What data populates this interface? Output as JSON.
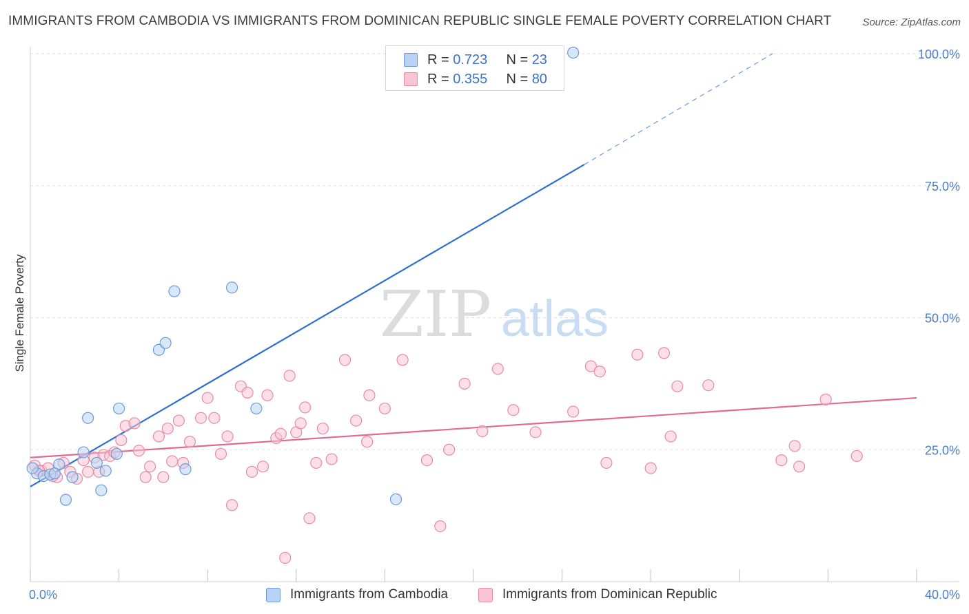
{
  "header": {
    "title": "IMMIGRANTS FROM CAMBODIA VS IMMIGRANTS FROM DOMINICAN REPUBLIC SINGLE FEMALE POVERTY CORRELATION CHART",
    "source": "Source: ZipAtlas.com"
  },
  "watermark": {
    "zip": "ZIP",
    "atlas": "atlas"
  },
  "legend": {
    "rows": [
      {
        "r_label": "R =",
        "r_value": "0.723",
        "n_label": "N =",
        "n_value": "23"
      },
      {
        "r_label": "R =",
        "r_value": "0.355",
        "n_label": "N =",
        "n_value": "80"
      }
    ]
  },
  "colors": {
    "cambodia_fill": "#b8d3f5",
    "cambodia_stroke": "#6a9ad8",
    "cambodia_line": "#2b6fce",
    "dominican_fill": "#f9c4d4",
    "dominican_stroke": "#e68aa6",
    "dominican_line": "#e06a92",
    "tick_text": "#4a7cc8"
  },
  "chart_data": {
    "type": "scatter",
    "title": "IMMIGRANTS FROM CAMBODIA VS IMMIGRANTS FROM DOMINICAN REPUBLIC SINGLE FEMALE POVERTY CORRELATION CHART",
    "xlabel": "",
    "ylabel": "Single Female Poverty",
    "xlim": [
      0,
      40
    ],
    "ylim": [
      0,
      102
    ],
    "x_tick_labels": [
      "0.0%",
      "40.0%"
    ],
    "y_ticks": [
      25,
      50,
      75,
      100
    ],
    "y_tick_labels": [
      "25.0%",
      "50.0%",
      "75.0%",
      "100.0%"
    ],
    "grid": "horizontal dashed",
    "legend_position": "top-center",
    "series": [
      {
        "name": "Immigrants from Cambodia",
        "color": "#b8d3f5",
        "points": [
          [
            0.3,
            20.5
          ],
          [
            0.6,
            20.0
          ],
          [
            0.9,
            20.3
          ],
          [
            1.3,
            22.2
          ],
          [
            1.6,
            15.5
          ],
          [
            1.9,
            19.8
          ],
          [
            2.4,
            24.5
          ],
          [
            2.6,
            31.0
          ],
          [
            3.0,
            22.5
          ],
          [
            3.2,
            17.3
          ],
          [
            3.4,
            21.0
          ],
          [
            3.9,
            24.2
          ],
          [
            4.0,
            32.8
          ],
          [
            5.8,
            43.9
          ],
          [
            6.1,
            45.2
          ],
          [
            6.5,
            55.0
          ],
          [
            7.0,
            21.3
          ],
          [
            9.1,
            55.7
          ],
          [
            10.2,
            32.8
          ],
          [
            16.5,
            15.6
          ],
          [
            24.5,
            100.2
          ],
          [
            0.1,
            21.5
          ],
          [
            1.1,
            20.5
          ]
        ]
      },
      {
        "name": "Immigrants from Dominican Republic",
        "color": "#f9c4d4",
        "points": [
          [
            0.2,
            22.0
          ],
          [
            0.5,
            21.0
          ],
          [
            0.8,
            21.5
          ],
          [
            1.2,
            19.8
          ],
          [
            1.5,
            22.5
          ],
          [
            1.8,
            20.8
          ],
          [
            2.1,
            19.5
          ],
          [
            2.4,
            23.0
          ],
          [
            2.6,
            20.8
          ],
          [
            2.9,
            23.5
          ],
          [
            3.1,
            20.8
          ],
          [
            3.3,
            24.0
          ],
          [
            3.6,
            23.8
          ],
          [
            4.1,
            26.8
          ],
          [
            4.3,
            29.5
          ],
          [
            4.7,
            30.0
          ],
          [
            4.9,
            24.8
          ],
          [
            5.2,
            19.8
          ],
          [
            5.4,
            21.8
          ],
          [
            5.8,
            27.5
          ],
          [
            6.0,
            19.8
          ],
          [
            6.2,
            29.0
          ],
          [
            6.4,
            22.8
          ],
          [
            6.7,
            30.5
          ],
          [
            6.9,
            22.5
          ],
          [
            7.2,
            26.5
          ],
          [
            7.7,
            31.0
          ],
          [
            8.0,
            34.8
          ],
          [
            8.3,
            31.0
          ],
          [
            8.6,
            24.2
          ],
          [
            8.9,
            27.5
          ],
          [
            9.1,
            14.5
          ],
          [
            9.5,
            37.0
          ],
          [
            9.8,
            35.8
          ],
          [
            10.0,
            20.8
          ],
          [
            10.5,
            21.8
          ],
          [
            10.7,
            35.3
          ],
          [
            11.1,
            27.2
          ],
          [
            11.3,
            28.0
          ],
          [
            11.5,
            4.5
          ],
          [
            11.7,
            39.0
          ],
          [
            12.0,
            28.3
          ],
          [
            12.2,
            30.0
          ],
          [
            12.4,
            33.0
          ],
          [
            12.6,
            12.0
          ],
          [
            12.9,
            22.5
          ],
          [
            13.2,
            29.0
          ],
          [
            13.6,
            23.2
          ],
          [
            14.2,
            42.0
          ],
          [
            14.7,
            30.5
          ],
          [
            15.2,
            26.5
          ],
          [
            15.3,
            35.3
          ],
          [
            16.0,
            32.8
          ],
          [
            16.8,
            42.0
          ],
          [
            17.9,
            23.0
          ],
          [
            18.5,
            10.5
          ],
          [
            18.9,
            25.0
          ],
          [
            19.6,
            37.5
          ],
          [
            20.4,
            28.5
          ],
          [
            21.1,
            40.3
          ],
          [
            21.8,
            32.5
          ],
          [
            22.8,
            28.3
          ],
          [
            24.5,
            32.2
          ],
          [
            25.3,
            40.8
          ],
          [
            25.7,
            39.8
          ],
          [
            26.0,
            22.5
          ],
          [
            27.4,
            43.0
          ],
          [
            28.0,
            21.5
          ],
          [
            28.6,
            43.3
          ],
          [
            28.9,
            27.5
          ],
          [
            29.2,
            37.0
          ],
          [
            30.6,
            37.2
          ],
          [
            33.9,
            23.0
          ],
          [
            34.5,
            25.7
          ],
          [
            34.7,
            21.8
          ],
          [
            35.9,
            34.5
          ],
          [
            37.3,
            23.8
          ],
          [
            1.0,
            20.0
          ],
          [
            0.4,
            21.0
          ],
          [
            3.8,
            24.5
          ]
        ]
      }
    ],
    "trend_lines": [
      {
        "series": "Immigrants from Cambodia",
        "x_start": 0,
        "y_start": 18.0,
        "x_solid_end": 25.0,
        "y_solid_end": 79.0,
        "x_dash_end": 33.5,
        "y_dash_end": 100.0
      },
      {
        "series": "Immigrants from Dominican Republic",
        "x_start": 0,
        "y_start": 23.5,
        "x_end": 40,
        "y_end": 34.8
      }
    ]
  },
  "bottom_legend": {
    "cambodia_label": "Immigrants from Cambodia",
    "dominican_label": "Immigrants from Dominican Republic"
  }
}
